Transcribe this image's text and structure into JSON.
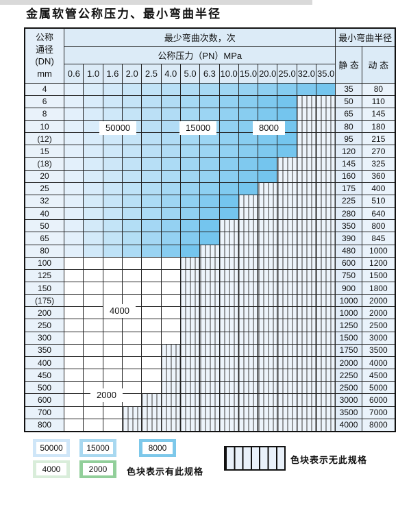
{
  "title": "金属软管公称压力、最小弯曲半径",
  "table": {
    "header": {
      "dn_label_lines": [
        "公称",
        "通径",
        "(DN)",
        "mm"
      ],
      "bend_cycles_label": "最少弯曲次数，次",
      "pressure_label": "公称压力（PN）MPa",
      "min_bend_radius_label": "最小弯曲半径",
      "static_label": "静 态",
      "dynamic_label": "动 态",
      "pressures": [
        "0.6",
        "1.0",
        "1.6",
        "2.0",
        "2.5",
        "4.0",
        "5.0",
        "6.3",
        "10.0",
        "15.0",
        "20.0",
        "25.0",
        "32.0",
        "35.0"
      ]
    },
    "rows": [
      {
        "dn": "4",
        "spec_cols": 14,
        "static": "35",
        "dynamic": "80",
        "scheme": "blue"
      },
      {
        "dn": "6",
        "spec_cols": 12,
        "static": "50",
        "dynamic": "110",
        "scheme": "blue"
      },
      {
        "dn": "8",
        "spec_cols": 12,
        "static": "65",
        "dynamic": "145",
        "scheme": "blue"
      },
      {
        "dn": "10",
        "spec_cols": 12,
        "static": "80",
        "dynamic": "180",
        "scheme": "blue"
      },
      {
        "dn": "(12)",
        "spec_cols": 12,
        "static": "95",
        "dynamic": "215",
        "scheme": "blue"
      },
      {
        "dn": "15",
        "spec_cols": 12,
        "static": "120",
        "dynamic": "270",
        "scheme": "blue"
      },
      {
        "dn": "(18)",
        "spec_cols": 11,
        "static": "145",
        "dynamic": "325",
        "scheme": "blue"
      },
      {
        "dn": "20",
        "spec_cols": 11,
        "static": "160",
        "dynamic": "360",
        "scheme": "blue"
      },
      {
        "dn": "25",
        "spec_cols": 10,
        "static": "175",
        "dynamic": "400",
        "scheme": "blue"
      },
      {
        "dn": "32",
        "spec_cols": 9,
        "static": "225",
        "dynamic": "510",
        "scheme": "blue"
      },
      {
        "dn": "40",
        "spec_cols": 9,
        "static": "280",
        "dynamic": "640",
        "scheme": "blue"
      },
      {
        "dn": "50",
        "spec_cols": 8,
        "static": "350",
        "dynamic": "800",
        "scheme": "blue"
      },
      {
        "dn": "65",
        "spec_cols": 8,
        "static": "390",
        "dynamic": "845",
        "scheme": "blue"
      },
      {
        "dn": "80",
        "spec_cols": 7,
        "static": "480",
        "dynamic": "1000",
        "scheme": "blue"
      },
      {
        "dn": "100",
        "spec_cols": 6,
        "static": "600",
        "dynamic": "1200",
        "scheme": "green"
      },
      {
        "dn": "125",
        "spec_cols": 6,
        "static": "750",
        "dynamic": "1500",
        "scheme": "green"
      },
      {
        "dn": "150",
        "spec_cols": 6,
        "static": "900",
        "dynamic": "1800",
        "scheme": "green"
      },
      {
        "dn": "(175)",
        "spec_cols": 6,
        "static": "1000",
        "dynamic": "2000",
        "scheme": "green"
      },
      {
        "dn": "200",
        "spec_cols": 6,
        "static": "1000",
        "dynamic": "2000",
        "scheme": "green"
      },
      {
        "dn": "250",
        "spec_cols": 6,
        "static": "1250",
        "dynamic": "2500",
        "scheme": "green"
      },
      {
        "dn": "300",
        "spec_cols": 6,
        "static": "1500",
        "dynamic": "3000",
        "scheme": "green"
      },
      {
        "dn": "350",
        "spec_cols": 5,
        "static": "1750",
        "dynamic": "3500",
        "scheme": "green"
      },
      {
        "dn": "400",
        "spec_cols": 5,
        "static": "2000",
        "dynamic": "4000",
        "scheme": "green"
      },
      {
        "dn": "450",
        "spec_cols": 5,
        "static": "2250",
        "dynamic": "4500",
        "scheme": "green"
      },
      {
        "dn": "500",
        "spec_cols": 5,
        "static": "2500",
        "dynamic": "5000",
        "scheme": "green"
      },
      {
        "dn": "600",
        "spec_cols": 4,
        "static": "3000",
        "dynamic": "6000",
        "scheme": "green"
      },
      {
        "dn": "700",
        "spec_cols": 3,
        "static": "3500",
        "dynamic": "7000",
        "scheme": "green"
      },
      {
        "dn": "800",
        "spec_cols": 3,
        "static": "4000",
        "dynamic": "8000",
        "scheme": "green"
      }
    ],
    "overlay_labels": [
      "50000",
      "15000",
      "8000",
      "4000",
      "2000"
    ]
  },
  "legend": {
    "patches": [
      {
        "label": "50000",
        "color": "#cfe6f8"
      },
      {
        "label": "15000",
        "color": "#a8d8f0"
      },
      {
        "label": "8000",
        "color": "#7dc8ea"
      },
      {
        "label": "4000",
        "color": "#d9edda"
      },
      {
        "label": "2000",
        "color": "#92cf9a"
      }
    ],
    "has_spec_note": "色块表示有此规格",
    "no_spec_note": "色块表示无此规格"
  },
  "colors": {
    "blue_light": "#e3f0fb",
    "blue_dark": "#74c5ee",
    "green_light_top": "#dcefdd",
    "green_light_bottom": "#9cd3a3",
    "green_dark_top": "#c9e6cb",
    "green_dark_bottom": "#8bcb95"
  }
}
